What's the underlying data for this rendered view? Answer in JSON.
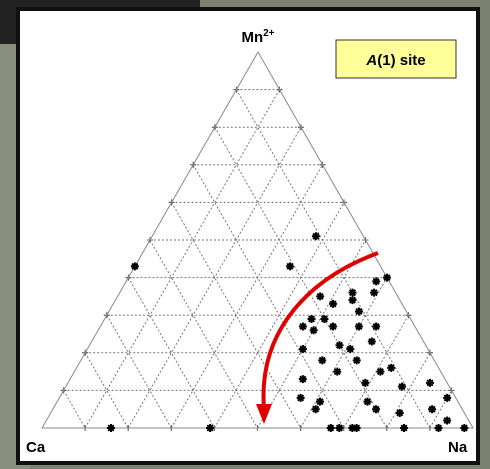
{
  "chart_data": {
    "type": "ternary",
    "top_label": "Mn",
    "top_label_superscript": "2+",
    "left_label": "Ca",
    "right_label": "Na",
    "annotation_italic": "A",
    "annotation": "(1) site",
    "ticks": [
      10,
      20,
      30,
      40,
      50,
      60,
      70,
      80,
      90
    ],
    "grid": true,
    "marker_color": "#000000",
    "arrow_color": "#e00000",
    "series": [
      {
        "mn": [
          51,
          43,
          43,
          40,
          39,
          36,
          36,
          35,
          33,
          34,
          31,
          29,
          29,
          27,
          26,
          27,
          27,
          27,
          23,
          22,
          21,
          21,
          18,
          18,
          15,
          15,
          16,
          13,
          12,
          12,
          11,
          8,
          7,
          7,
          8,
          5,
          5,
          5,
          4,
          0,
          0,
          0,
          0,
          0,
          0,
          0,
          0,
          0,
          2
        ],
        "na": [
          38,
          0,
          36,
          60,
          58,
          59,
          54,
          47,
          51,
          55,
          58,
          48,
          51,
          47,
          50,
          54,
          60,
          64,
          65,
          58,
          61,
          50,
          56,
          64,
          61,
          71,
          73,
          54,
          69,
          84,
          78,
          56,
          61,
          72,
          90,
          61,
          75,
          88,
          81,
          16,
          39,
          67,
          69,
          72,
          73,
          84,
          92,
          98,
          93
        ]
      }
    ]
  }
}
